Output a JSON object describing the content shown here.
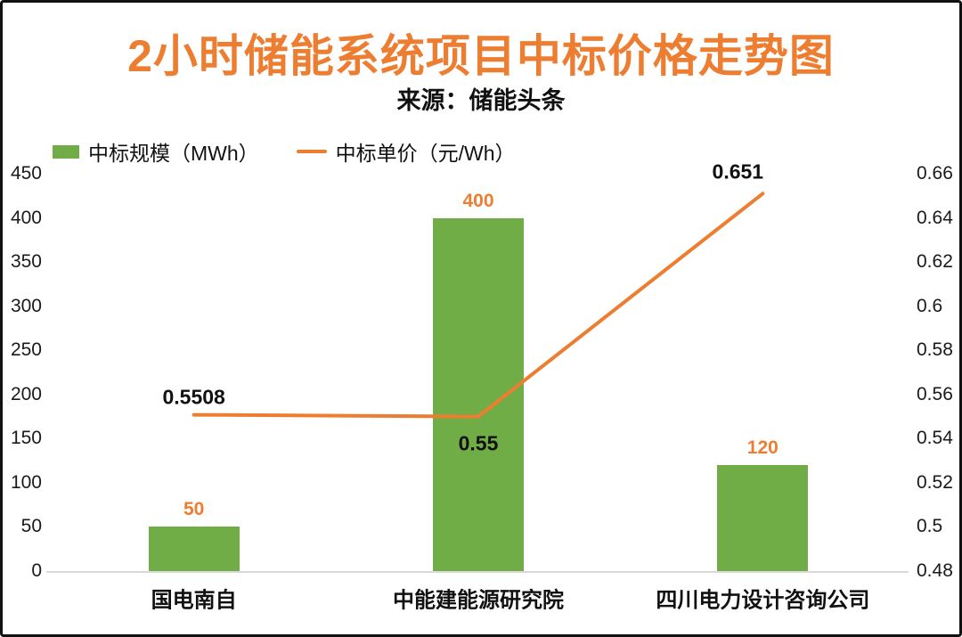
{
  "title": "2小时储能系统项目中标价格走势图",
  "subtitle": "来源：储能头条",
  "legend": {
    "items": [
      {
        "label": "中标规模（MWh）",
        "swatch": "bar-swatch-green"
      },
      {
        "label": "中标单价（元/Wh）",
        "swatch": "line-swatch-orange"
      }
    ]
  },
  "colors": {
    "bar_green": "#70AD47",
    "line_orange": "#ED7D31",
    "title_orange": "#ED7D31",
    "axis_line_gray": "#D9D9D9",
    "text_black": "#111111"
  },
  "chart_data": {
    "type": "bar+line combo",
    "categories": [
      "国电南自",
      "中能建能源研究院",
      "四川电力设计咨询公司"
    ],
    "series": [
      {
        "name": "中标规模（MWh）",
        "type": "bar",
        "axis": "left",
        "color": "#70AD47",
        "values": [
          50,
          400,
          120
        ],
        "data_labels": [
          "50",
          "400",
          "120"
        ]
      },
      {
        "name": "中标单价（元/Wh）",
        "type": "line",
        "axis": "right",
        "color": "#ED7D31",
        "values": [
          0.5508,
          0.55,
          0.651
        ],
        "data_labels": [
          "0.5508",
          "0.55",
          "0.651"
        ]
      }
    ],
    "left_axis": {
      "min": 0,
      "max": 450,
      "step": 50,
      "ticks": [
        "0",
        "50",
        "100",
        "150",
        "200",
        "250",
        "300",
        "350",
        "400",
        "450"
      ]
    },
    "right_axis": {
      "min": 0.48,
      "max": 0.66,
      "step": 0.02,
      "ticks": [
        "0.48",
        "0.5",
        "0.52",
        "0.54",
        "0.56",
        "0.58",
        "0.6",
        "0.62",
        "0.64",
        "0.66"
      ]
    },
    "grid": false,
    "legend_position": "top-left"
  }
}
